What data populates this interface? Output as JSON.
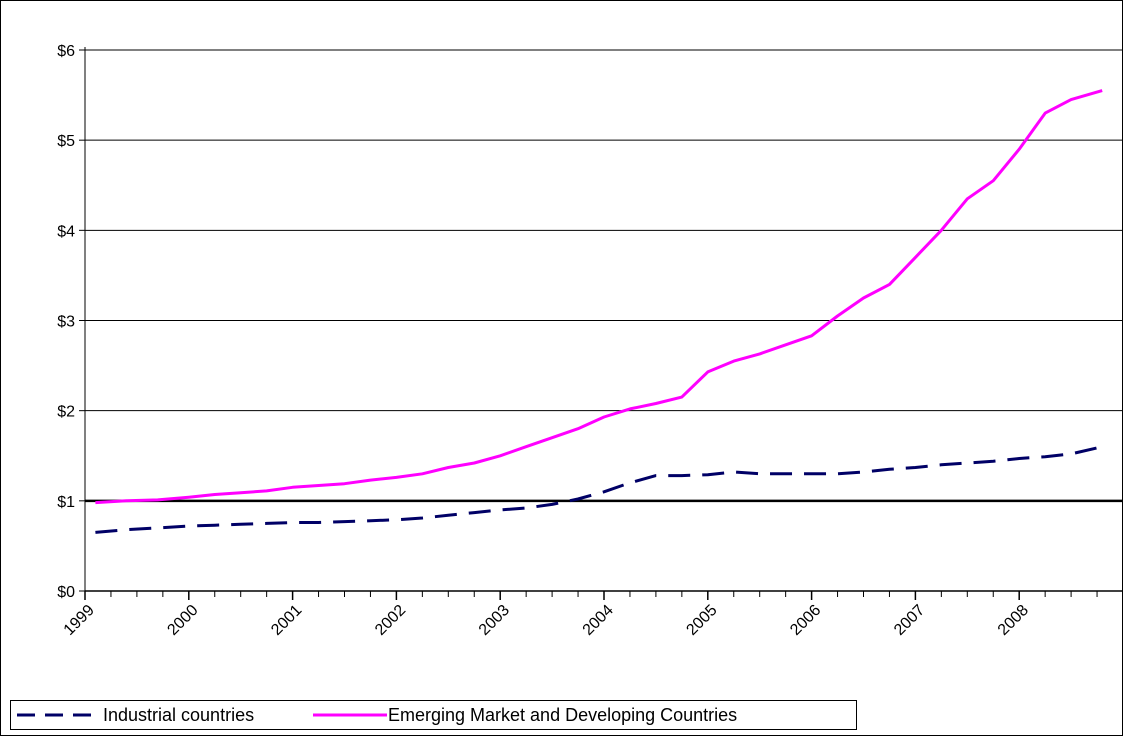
{
  "chart_data": {
    "type": "line",
    "title": "",
    "xlabel": "",
    "ylabel": "",
    "y_tick_labels": [
      "$0",
      "$1",
      "$2",
      "$3",
      "$4",
      "$5",
      "$6"
    ],
    "ylim": [
      0,
      6
    ],
    "x_tick_labels": [
      "1999",
      "2000",
      "2001",
      "2002",
      "2003",
      "2004",
      "2005",
      "2006",
      "2007",
      "2008"
    ],
    "xlim": [
      1999,
      2009.0
    ],
    "grid": true,
    "reference_line_y": 1,
    "legend_position": "bottom-left",
    "series": [
      {
        "name": "Industrial countries",
        "color": "#000066",
        "dash": "dashed",
        "x": [
          1999.1,
          1999.4,
          1999.7,
          2000.0,
          2000.25,
          2000.5,
          2000.75,
          2001.0,
          2001.25,
          2001.5,
          2001.75,
          2002.0,
          2002.25,
          2002.5,
          2002.75,
          2003.0,
          2003.25,
          2003.5,
          2003.75,
          2004.0,
          2004.25,
          2004.5,
          2004.75,
          2005.0,
          2005.25,
          2005.5,
          2005.75,
          2006.0,
          2006.25,
          2006.5,
          2006.75,
          2007.0,
          2007.25,
          2007.5,
          2007.75,
          2008.0,
          2008.25,
          2008.5,
          2008.8
        ],
        "values": [
          0.65,
          0.68,
          0.7,
          0.72,
          0.73,
          0.74,
          0.75,
          0.76,
          0.76,
          0.77,
          0.78,
          0.79,
          0.81,
          0.84,
          0.87,
          0.9,
          0.92,
          0.96,
          1.02,
          1.1,
          1.2,
          1.28,
          1.28,
          1.29,
          1.32,
          1.3,
          1.3,
          1.3,
          1.3,
          1.32,
          1.35,
          1.37,
          1.4,
          1.42,
          1.44,
          1.47,
          1.49,
          1.52,
          1.6
        ]
      },
      {
        "name": "Emerging Market and Developing Countries",
        "color": "#ff00ff",
        "dash": "solid",
        "x": [
          1999.1,
          1999.4,
          1999.7,
          2000.0,
          2000.25,
          2000.5,
          2000.75,
          2001.0,
          2001.25,
          2001.5,
          2001.75,
          2002.0,
          2002.25,
          2002.5,
          2002.75,
          2003.0,
          2003.25,
          2003.5,
          2003.75,
          2004.0,
          2004.25,
          2004.5,
          2004.75,
          2005.0,
          2005.25,
          2005.5,
          2005.75,
          2006.0,
          2006.25,
          2006.5,
          2006.75,
          2007.0,
          2007.25,
          2007.5,
          2007.75,
          2008.0,
          2008.25,
          2008.5,
          2008.8
        ],
        "values": [
          0.98,
          1.0,
          1.01,
          1.04,
          1.07,
          1.09,
          1.11,
          1.15,
          1.17,
          1.19,
          1.23,
          1.26,
          1.3,
          1.37,
          1.42,
          1.5,
          1.6,
          1.7,
          1.8,
          1.93,
          2.02,
          2.08,
          2.15,
          2.43,
          2.55,
          2.63,
          2.73,
          2.83,
          3.05,
          3.25,
          3.4,
          3.7,
          4.0,
          4.35,
          4.55,
          4.9,
          5.3,
          5.45,
          5.55
        ]
      }
    ]
  }
}
